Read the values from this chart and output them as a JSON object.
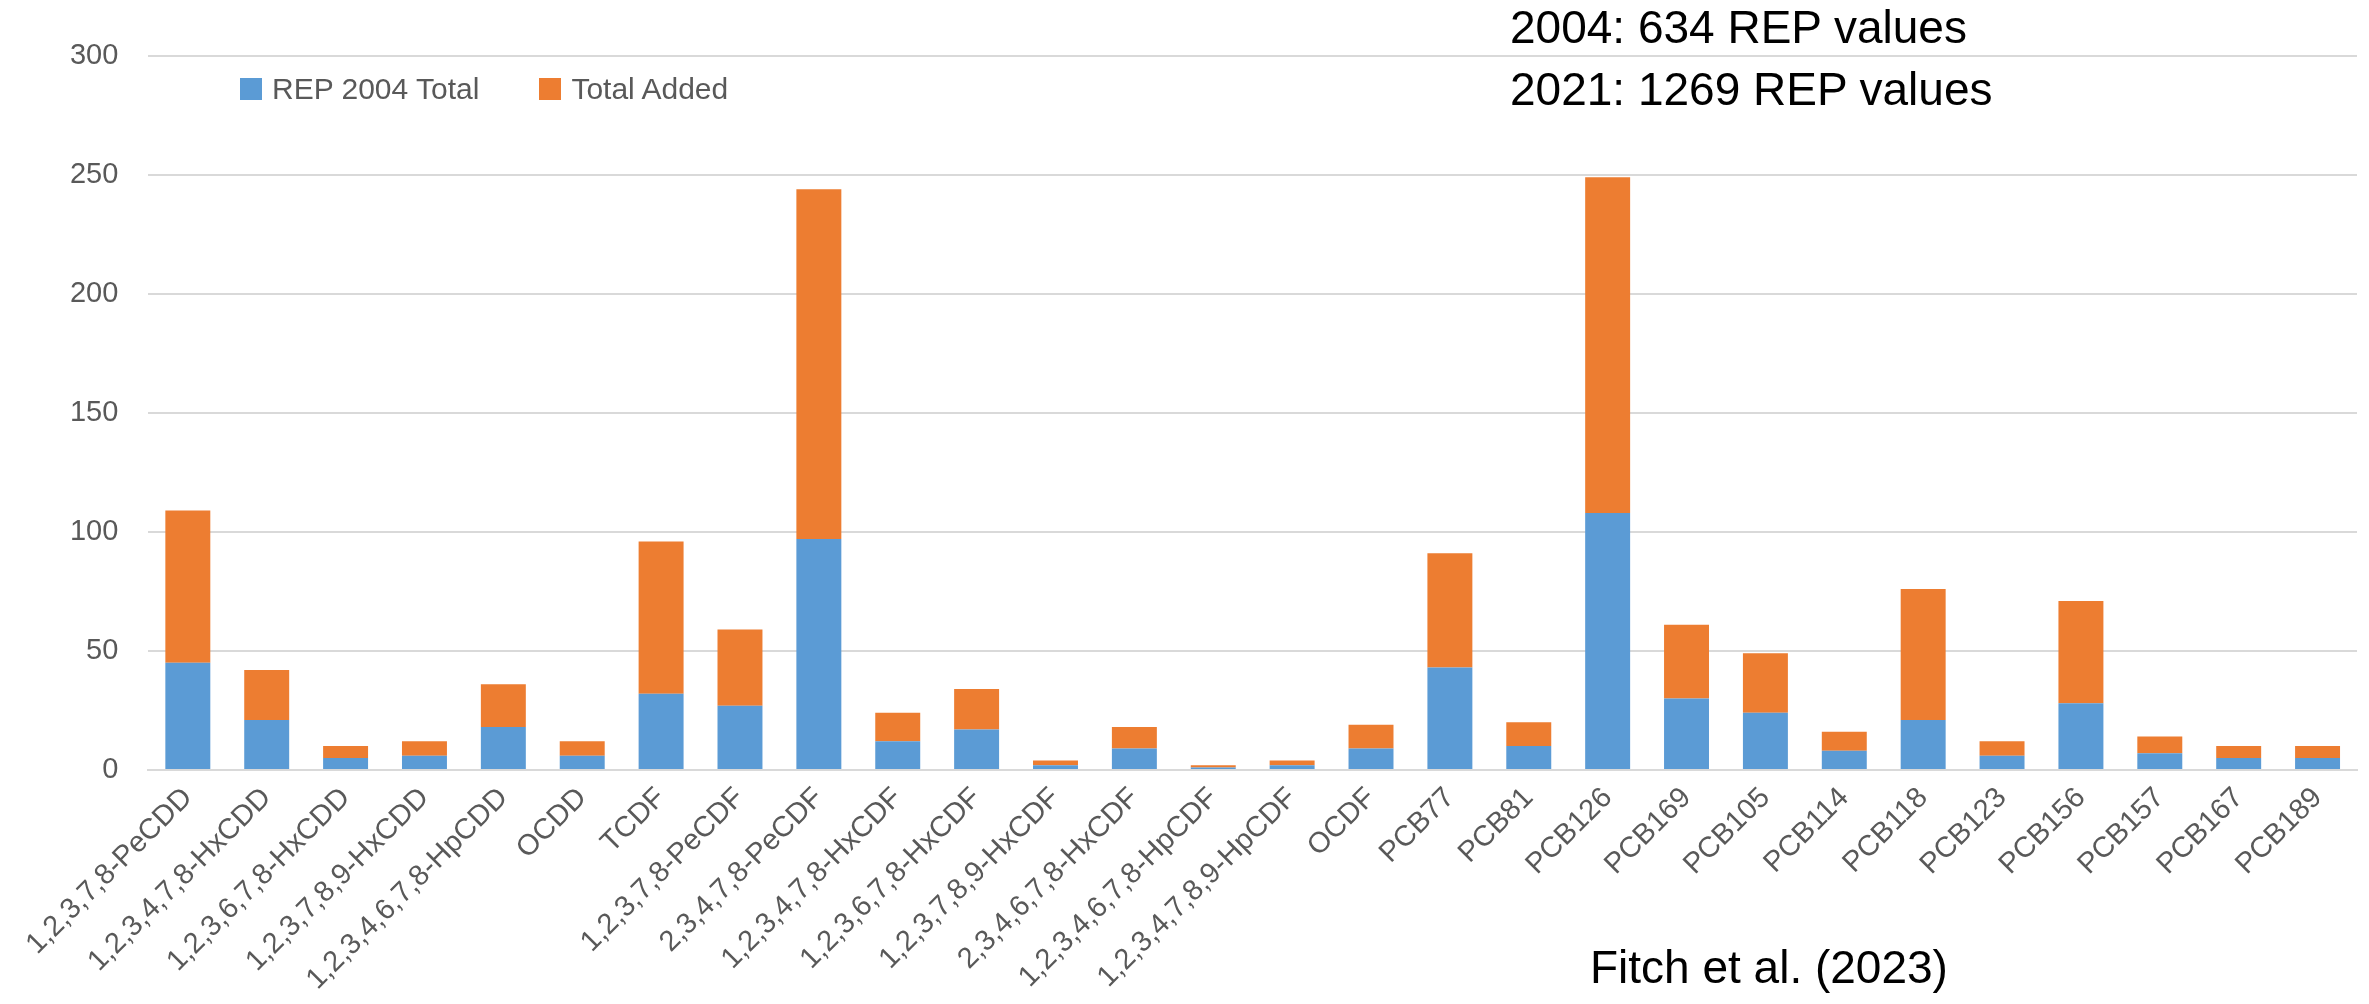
{
  "chart_data": {
    "type": "bar",
    "stacked": true,
    "categories": [
      "1,2,3,7,8-PeCDD",
      "1,2,3,4,7,8-HxCDD",
      "1,2,3,6,7,8-HxCDD",
      "1,2,3,7,8,9-HxCDD",
      "1,2,3,4,6,7,8-HpCDD",
      "OCDD",
      "TCDF",
      "1,2,3,7,8-PeCDF",
      "2,3,4,7,8-PeCDF",
      "1,2,3,4,7,8-HxCDF",
      "1,2,3,6,7,8-HxCDF",
      "1,2,3,7,8,9-HxCDF",
      "2,3,4,6,7,8-HxCDF",
      "1,2,3,4,6,7,8-HpCDF",
      "1,2,3,4,7,8,9-HpCDF",
      "OCDF",
      "PCB77",
      "PCB81",
      "PCB126",
      "PCB169",
      "PCB105",
      "PCB114",
      "PCB118",
      "PCB123",
      "PCB156",
      "PCB157",
      "PCB167",
      "PCB189"
    ],
    "series": [
      {
        "name": "REP 2004 Total",
        "color": "#5b9bd5",
        "values": [
          45,
          21,
          5,
          6,
          18,
          6,
          32,
          27,
          97,
          12,
          17,
          2,
          9,
          1,
          2,
          9,
          43,
          10,
          108,
          30,
          24,
          8,
          21,
          6,
          28,
          7,
          5,
          5
        ]
      },
      {
        "name": "Total Added",
        "color": "#ed7d31",
        "values": [
          64,
          21,
          5,
          6,
          18,
          6,
          64,
          32,
          147,
          12,
          17,
          2,
          9,
          1,
          2,
          10,
          48,
          10,
          141,
          31,
          25,
          8,
          55,
          6,
          43,
          7,
          5,
          5
        ]
      }
    ],
    "ylim": [
      0,
      300
    ],
    "yticks": [
      0,
      50,
      100,
      150,
      200,
      250,
      300
    ],
    "grid": "y",
    "legend": "top left",
    "annotations": [
      "2004: 634 REP values",
      "2021: 1269 REP values",
      "Fitch et al. (2023)"
    ]
  }
}
